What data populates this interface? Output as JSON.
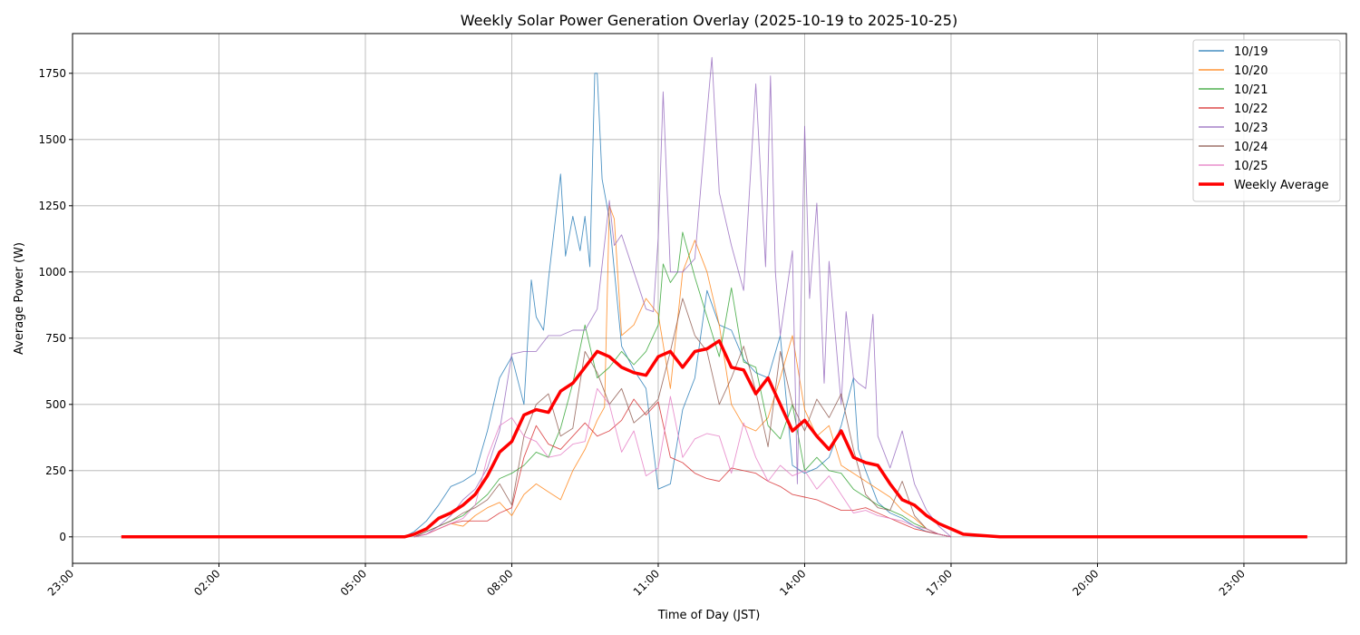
{
  "chart_data": {
    "type": "line",
    "title": "Weekly Solar Power Generation Overlay (2025-10-19 to 2025-10-25)",
    "xlabel": "Time of Day (JST)",
    "ylabel": "Average Power (W)",
    "x_unit": "hours",
    "xlim": [
      -1.0,
      25.1
    ],
    "ylim": [
      -100,
      1900
    ],
    "x_ticks": [
      -1,
      2,
      5,
      8,
      11,
      14,
      17,
      20,
      23
    ],
    "x_tick_labels": [
      "23:00",
      "02:00",
      "05:00",
      "08:00",
      "11:00",
      "14:00",
      "17:00",
      "20:00",
      "23:00"
    ],
    "y_ticks": [
      0,
      250,
      500,
      750,
      1000,
      1250,
      1500,
      1750
    ],
    "y_tick_labels": [
      "0",
      "250",
      "500",
      "750",
      "1000",
      "1250",
      "1500",
      "1750"
    ],
    "grid": true,
    "legend_position": "top-right",
    "series": [
      {
        "name": "10/19",
        "color": "#1f77b4",
        "x": [
          5.8,
          6.0,
          6.25,
          6.5,
          6.75,
          7.0,
          7.25,
          7.5,
          7.75,
          8.0,
          8.25,
          8.4,
          8.5,
          8.65,
          8.75,
          9.0,
          9.1,
          9.25,
          9.4,
          9.5,
          9.6,
          9.7,
          9.75,
          9.85,
          10.0,
          10.25,
          10.5,
          10.75,
          11.0,
          11.25,
          11.5,
          11.75,
          12.0,
          12.25,
          12.5,
          12.75,
          13.0,
          13.25,
          13.5,
          13.75,
          14.0,
          14.25,
          14.5,
          14.75,
          15.0,
          15.1,
          15.25,
          15.5,
          15.75,
          16.0,
          16.25,
          16.5,
          16.75,
          17.0
        ],
        "y": [
          0,
          20,
          60,
          120,
          190,
          210,
          240,
          400,
          600,
          680,
          500,
          970,
          830,
          780,
          970,
          1370,
          1060,
          1210,
          1080,
          1210,
          1020,
          1750,
          1750,
          1350,
          1200,
          720,
          630,
          560,
          180,
          200,
          480,
          600,
          930,
          800,
          780,
          670,
          620,
          600,
          760,
          270,
          240,
          260,
          300,
          420,
          600,
          330,
          250,
          130,
          90,
          70,
          40,
          20,
          10,
          0
        ]
      },
      {
        "name": "10/20",
        "color": "#ff7f0e",
        "x": [
          6.0,
          6.25,
          6.5,
          6.75,
          7.0,
          7.25,
          7.5,
          7.75,
          8.0,
          8.25,
          8.5,
          8.75,
          9.0,
          9.25,
          9.5,
          9.75,
          9.9,
          10.0,
          10.1,
          10.25,
          10.5,
          10.75,
          11.0,
          11.25,
          11.5,
          11.75,
          12.0,
          12.25,
          12.5,
          12.75,
          13.0,
          13.25,
          13.5,
          13.75,
          14.0,
          14.25,
          14.5,
          14.75,
          15.0,
          15.25,
          15.5,
          15.75,
          16.0,
          16.25,
          16.5,
          16.75,
          17.0
        ],
        "y": [
          0,
          10,
          30,
          50,
          40,
          80,
          110,
          130,
          80,
          160,
          200,
          170,
          140,
          250,
          330,
          440,
          490,
          1250,
          1200,
          760,
          800,
          900,
          840,
          560,
          1000,
          1120,
          1000,
          800,
          500,
          420,
          400,
          450,
          600,
          760,
          480,
          380,
          420,
          270,
          240,
          210,
          180,
          150,
          100,
          70,
          30,
          10,
          0
        ]
      },
      {
        "name": "10/21",
        "color": "#2ca02c",
        "x": [
          6.0,
          6.25,
          6.5,
          6.75,
          7.0,
          7.25,
          7.5,
          7.75,
          8.0,
          8.25,
          8.5,
          8.75,
          9.0,
          9.25,
          9.5,
          9.75,
          10.0,
          10.25,
          10.5,
          10.75,
          11.0,
          11.1,
          11.25,
          11.4,
          11.5,
          11.75,
          12.0,
          12.25,
          12.5,
          12.75,
          13.0,
          13.25,
          13.5,
          13.75,
          14.0,
          14.25,
          14.5,
          14.75,
          15.0,
          15.25,
          15.5,
          15.75,
          16.0,
          16.25,
          16.5,
          16.75,
          17.0
        ],
        "y": [
          0,
          20,
          40,
          60,
          80,
          120,
          160,
          220,
          240,
          270,
          320,
          300,
          410,
          580,
          800,
          600,
          640,
          700,
          650,
          700,
          800,
          1030,
          960,
          1000,
          1150,
          980,
          830,
          680,
          940,
          660,
          640,
          420,
          370,
          500,
          250,
          300,
          250,
          240,
          180,
          150,
          120,
          100,
          80,
          50,
          30,
          10,
          0
        ]
      },
      {
        "name": "10/22",
        "color": "#d62728",
        "x": [
          6.0,
          6.25,
          6.5,
          6.75,
          7.0,
          7.25,
          7.5,
          7.75,
          8.0,
          8.25,
          8.5,
          8.75,
          9.0,
          9.25,
          9.5,
          9.75,
          10.0,
          10.25,
          10.5,
          10.75,
          11.0,
          11.25,
          11.5,
          11.75,
          12.0,
          12.25,
          12.5,
          12.75,
          13.0,
          13.25,
          13.5,
          13.75,
          14.0,
          14.25,
          14.5,
          14.75,
          15.0,
          15.25,
          15.5,
          15.75,
          16.0,
          16.25,
          16.5,
          16.75,
          17.0
        ],
        "y": [
          0,
          10,
          30,
          50,
          60,
          60,
          60,
          90,
          110,
          300,
          420,
          350,
          330,
          380,
          430,
          380,
          400,
          440,
          520,
          460,
          510,
          300,
          280,
          240,
          220,
          210,
          260,
          250,
          240,
          210,
          190,
          160,
          150,
          140,
          120,
          100,
          100,
          110,
          90,
          70,
          50,
          30,
          20,
          10,
          0
        ]
      },
      {
        "name": "10/23",
        "color": "#9467bd",
        "x": [
          6.0,
          6.25,
          6.5,
          6.75,
          7.0,
          7.25,
          7.5,
          7.75,
          8.0,
          8.25,
          8.5,
          8.75,
          9.0,
          9.25,
          9.5,
          9.75,
          10.0,
          10.1,
          10.25,
          10.5,
          10.75,
          10.9,
          11.0,
          11.1,
          11.25,
          11.5,
          11.75,
          12.0,
          12.1,
          12.25,
          12.5,
          12.75,
          13.0,
          13.2,
          13.3,
          13.4,
          13.5,
          13.75,
          13.85,
          14.0,
          14.1,
          14.25,
          14.4,
          14.5,
          14.75,
          14.85,
          15.0,
          15.1,
          15.25,
          15.4,
          15.5,
          15.75,
          16.0,
          16.25,
          16.5,
          16.75,
          17.0
        ],
        "y": [
          0,
          10,
          40,
          80,
          140,
          180,
          260,
          400,
          690,
          700,
          700,
          760,
          760,
          780,
          780,
          860,
          1270,
          1100,
          1140,
          1000,
          860,
          850,
          1130,
          1680,
          1000,
          1000,
          1050,
          1600,
          1810,
          1300,
          1100,
          930,
          1710,
          1020,
          1740,
          1000,
          760,
          1080,
          200,
          1550,
          900,
          1260,
          580,
          1040,
          500,
          850,
          600,
          580,
          560,
          840,
          380,
          260,
          400,
          200,
          100,
          40,
          0
        ]
      },
      {
        "name": "10/24",
        "color": "#8c564b",
        "x": [
          6.0,
          6.25,
          6.5,
          6.75,
          7.0,
          7.25,
          7.5,
          7.75,
          8.0,
          8.25,
          8.5,
          8.75,
          9.0,
          9.25,
          9.5,
          9.75,
          10.0,
          10.25,
          10.5,
          10.75,
          11.0,
          11.25,
          11.5,
          11.75,
          12.0,
          12.25,
          12.5,
          12.75,
          13.0,
          13.25,
          13.5,
          13.75,
          14.0,
          14.25,
          14.5,
          14.75,
          15.0,
          15.25,
          15.5,
          15.75,
          16.0,
          16.25,
          16.5,
          16.75,
          17.0
        ],
        "y": [
          0,
          20,
          40,
          60,
          90,
          110,
          140,
          200,
          120,
          380,
          500,
          540,
          380,
          410,
          700,
          620,
          500,
          560,
          430,
          470,
          520,
          700,
          900,
          760,
          700,
          500,
          600,
          720,
          550,
          340,
          700,
          500,
          400,
          520,
          450,
          540,
          330,
          160,
          110,
          100,
          210,
          80,
          30,
          10,
          0
        ]
      },
      {
        "name": "10/25",
        "color": "#e377c2",
        "x": [
          6.0,
          6.25,
          6.5,
          6.75,
          7.0,
          7.25,
          7.5,
          7.75,
          8.0,
          8.25,
          8.5,
          8.75,
          9.0,
          9.25,
          9.5,
          9.75,
          10.0,
          10.25,
          10.5,
          10.75,
          11.0,
          11.25,
          11.5,
          11.75,
          12.0,
          12.25,
          12.5,
          12.75,
          13.0,
          13.25,
          13.5,
          13.75,
          14.0,
          14.25,
          14.5,
          14.75,
          15.0,
          15.25,
          15.5,
          15.75,
          16.0,
          16.25,
          16.5,
          16.75,
          17.0
        ],
        "y": [
          0,
          10,
          30,
          50,
          70,
          120,
          300,
          420,
          450,
          380,
          360,
          300,
          310,
          350,
          360,
          560,
          500,
          320,
          400,
          230,
          260,
          530,
          300,
          370,
          390,
          380,
          240,
          430,
          300,
          210,
          270,
          230,
          250,
          180,
          230,
          160,
          90,
          100,
          80,
          70,
          60,
          40,
          30,
          10,
          0
        ]
      },
      {
        "name": "Weekly Average",
        "color": "#ff0000",
        "bold": true,
        "x": [
          0,
          1,
          2,
          3,
          4,
          5,
          5.8,
          6.0,
          6.25,
          6.5,
          6.75,
          7.0,
          7.25,
          7.5,
          7.75,
          8.0,
          8.25,
          8.5,
          8.75,
          9.0,
          9.25,
          9.5,
          9.75,
          10.0,
          10.25,
          10.5,
          10.75,
          11.0,
          11.25,
          11.5,
          11.75,
          12.0,
          12.25,
          12.5,
          12.75,
          13.0,
          13.25,
          13.5,
          13.75,
          14.0,
          14.25,
          14.5,
          14.75,
          15.0,
          15.25,
          15.5,
          15.75,
          16.0,
          16.25,
          16.5,
          16.75,
          17.0,
          17.25,
          18,
          19,
          20,
          21,
          22,
          23,
          24.3
        ],
        "y": [
          0,
          0,
          0,
          0,
          0,
          0,
          0,
          10,
          30,
          70,
          90,
          120,
          160,
          230,
          320,
          360,
          460,
          480,
          470,
          550,
          580,
          640,
          700,
          680,
          640,
          620,
          610,
          680,
          700,
          640,
          700,
          710,
          740,
          640,
          630,
          540,
          600,
          500,
          400,
          440,
          380,
          330,
          400,
          300,
          280,
          270,
          200,
          140,
          120,
          80,
          50,
          30,
          10,
          0,
          0,
          0,
          0,
          0,
          0,
          0
        ]
      }
    ]
  }
}
